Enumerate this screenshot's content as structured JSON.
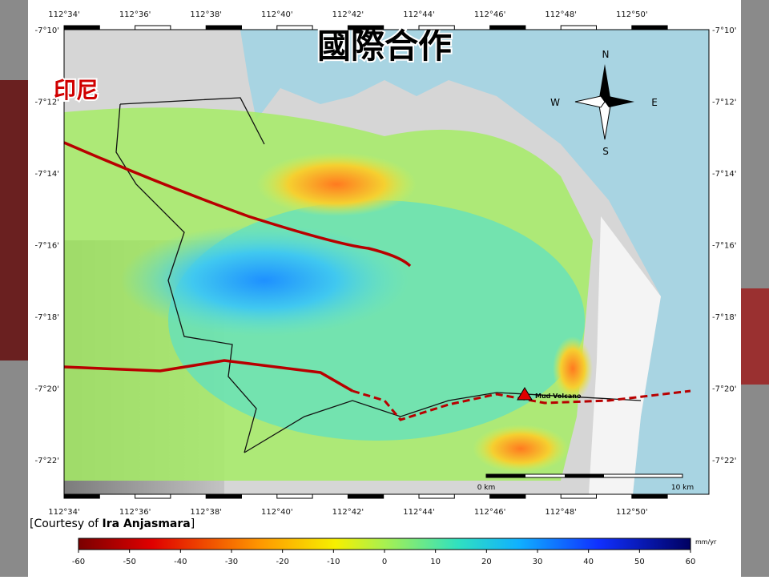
{
  "title": "國際合作",
  "region_label": "印尼",
  "map": {
    "lon_labels": [
      "112°34'",
      "112°36'",
      "112°38'",
      "112°40'",
      "112°42'",
      "112°44'",
      "112°46'",
      "112°48'",
      "112°50'"
    ],
    "lat_labels": [
      "-7°10'",
      "-7°12'",
      "-7°14'",
      "-7°16'",
      "-7°18'",
      "-7°20'",
      "-7°22'"
    ],
    "compass": {
      "north": "N",
      "south": "S",
      "east": "E",
      "west": "W"
    },
    "annotation": "Mud Volcano",
    "scale_bar": {
      "start": "0 km",
      "end": "10 km"
    }
  },
  "credit": {
    "prefix": "[Courtesy of",
    "name": "Ira Anjasmara",
    "suffix": "]"
  },
  "colorbar": {
    "unit": "mm/yr",
    "ticks": [
      -60,
      -50,
      -40,
      -30,
      -20,
      -10,
      0,
      10,
      20,
      30,
      40,
      50,
      60
    ]
  }
}
